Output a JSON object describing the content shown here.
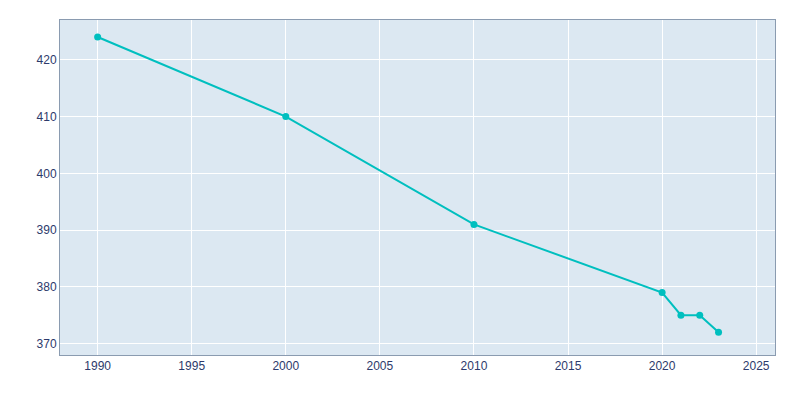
{
  "chart_data": {
    "type": "line",
    "x": [
      1990,
      2000,
      2010,
      2020,
      2021,
      2022,
      2023
    ],
    "values": [
      424,
      410,
      391,
      379,
      375,
      375,
      372
    ],
    "color": "#00BFBF",
    "marker": "circle",
    "xlim": [
      1988,
      2026
    ],
    "ylim": [
      368,
      427
    ],
    "xticks": [
      1990,
      1995,
      2000,
      2005,
      2010,
      2015,
      2020,
      2025
    ],
    "yticks": [
      370,
      380,
      390,
      400,
      410,
      420
    ],
    "grid": true
  }
}
